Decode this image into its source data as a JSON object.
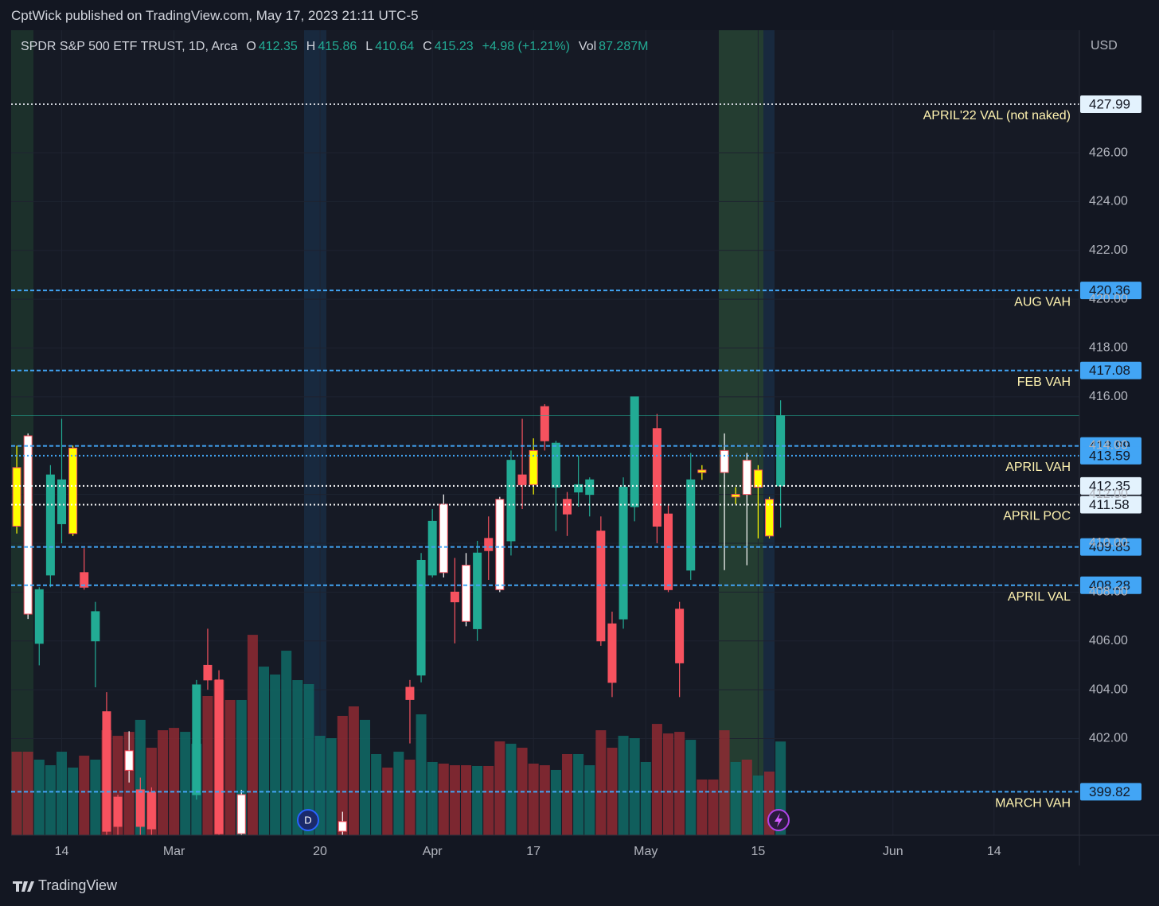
{
  "header": {
    "published": "CptWick published on TradingView.com, May 17, 2023 21:11 UTC-5",
    "symbol": "SPDR S&P 500 ETF TRUST, 1D, Arca",
    "o_label": "O",
    "open": 412.35,
    "h_label": "H",
    "high": 415.86,
    "l_label": "L",
    "low": 410.64,
    "c_label": "C",
    "close": 415.23,
    "change": "+4.98 (+1.21%)",
    "vol_label": "Vol",
    "volume": "87.287M"
  },
  "footer": {
    "brand": "TradingView"
  },
  "chart_data": {
    "type": "candlestick",
    "currency": "USD",
    "xlim": [
      -4.5,
      90.6
    ],
    "ylim": [
      398.04,
      431.02
    ],
    "vlim": [
      0,
      750
    ],
    "xticks": [
      {
        "value": 0,
        "label": "14"
      },
      {
        "value": 10,
        "label": "Mar"
      },
      {
        "value": 23,
        "label": "20"
      },
      {
        "value": 33,
        "label": "Apr"
      },
      {
        "value": 42,
        "label": "17"
      },
      {
        "value": 52,
        "label": "May"
      },
      {
        "value": 62,
        "label": "15"
      },
      {
        "value": 74,
        "label": "Jun"
      },
      {
        "value": 83,
        "label": "14"
      }
    ],
    "yticks": [
      {
        "value": 402,
        "label": "402.00"
      },
      {
        "value": 404,
        "label": "404.00"
      },
      {
        "value": 406,
        "label": "406.00"
      },
      {
        "value": 408,
        "label": "408.00"
      },
      {
        "value": 410,
        "label": "410.00"
      },
      {
        "value": 412,
        "label": "412.00"
      },
      {
        "value": 414,
        "label": "414.00"
      },
      {
        "value": 416,
        "label": "416.00"
      },
      {
        "value": 418,
        "label": "418.00"
      },
      {
        "value": 420,
        "label": "420.00"
      },
      {
        "value": 422,
        "label": "422.00"
      },
      {
        "value": 424,
        "label": "424.00"
      },
      {
        "value": 426,
        "label": "426.00"
      }
    ],
    "grid": true,
    "candles": [
      {
        "x": -4,
        "open": 410.7,
        "high": 414.0,
        "low": 410.4,
        "close": 413.1,
        "color": "#ffff00"
      },
      {
        "x": -3,
        "open": 414.4,
        "high": 414.5,
        "low": 406.9,
        "close": 407.1,
        "color": "#ffffff"
      },
      {
        "x": -2,
        "open": 405.9,
        "high": 408.2,
        "low": 405.0,
        "close": 408.1,
        "color": "#22ab94"
      },
      {
        "x": -1,
        "open": 408.7,
        "high": 413.2,
        "low": 408.2,
        "close": 412.8,
        "color": "#22ab94"
      },
      {
        "x": 0,
        "open": 410.8,
        "high": 415.1,
        "low": 410.0,
        "close": 412.6,
        "color": "#22ab94"
      },
      {
        "x": 1,
        "open": 410.4,
        "high": 414.0,
        "low": 410.3,
        "close": 413.9,
        "color": "#ffff00"
      },
      {
        "x": 2,
        "open": 408.8,
        "high": 409.8,
        "low": 408.1,
        "close": 408.2,
        "color": "#f7525f"
      },
      {
        "x": 3,
        "open": 406.0,
        "high": 407.6,
        "low": 404.1,
        "close": 407.2,
        "color": "#22ab94"
      },
      {
        "x": 4,
        "open": 403.1,
        "high": 403.9,
        "low": 398.0,
        "close": 398.2,
        "color": "#f7525f"
      },
      {
        "x": 5,
        "open": 399.6,
        "high": 399.7,
        "low": 398.0,
        "close": 398.4,
        "color": "#f7525f"
      },
      {
        "x": 6,
        "open": 401.5,
        "high": 402.3,
        "low": 400.2,
        "close": 400.7,
        "color": "#ffffff"
      },
      {
        "x": 7,
        "open": 399.9,
        "high": 400.4,
        "low": 398.0,
        "close": 398.4,
        "color": "#f7525f"
      },
      {
        "x": 8,
        "open": 399.8,
        "high": 400.0,
        "low": 398.0,
        "close": 398.3,
        "color": "#f7525f"
      },
      {
        "x": 12,
        "open": 399.7,
        "high": 404.4,
        "low": 399.5,
        "close": 404.2,
        "color": "#22ab94"
      },
      {
        "x": 13,
        "open": 405.0,
        "high": 406.5,
        "low": 404.0,
        "close": 404.4,
        "color": "#f7525f"
      },
      {
        "x": 14,
        "open": 404.4,
        "high": 404.8,
        "low": 398.0,
        "close": 398.1,
        "color": "#f7525f"
      },
      {
        "x": 16,
        "open": 398.1,
        "high": 399.9,
        "low": 398.0,
        "close": 399.7,
        "color": "#ffffff"
      },
      {
        "x": 25,
        "open": 398.2,
        "high": 399.0,
        "low": 398.0,
        "close": 398.6,
        "color": "#ffffff"
      },
      {
        "x": 31,
        "open": 404.1,
        "high": 404.4,
        "low": 401.8,
        "close": 403.6,
        "color": "#f7525f"
      },
      {
        "x": 32,
        "open": 404.6,
        "high": 409.6,
        "low": 404.3,
        "close": 409.3,
        "color": "#22ab94"
      },
      {
        "x": 33,
        "open": 408.7,
        "high": 411.4,
        "low": 408.6,
        "close": 410.9,
        "color": "#22ab94"
      },
      {
        "x": 34,
        "open": 411.6,
        "high": 412.0,
        "low": 408.6,
        "close": 408.8,
        "color": "#ffffff"
      },
      {
        "x": 35,
        "open": 408.0,
        "high": 409.4,
        "low": 405.9,
        "close": 407.6,
        "color": "#f7525f"
      },
      {
        "x": 36,
        "open": 409.1,
        "high": 409.6,
        "low": 406.6,
        "close": 406.8,
        "color": "#ffffff"
      },
      {
        "x": 37,
        "open": 406.5,
        "high": 410.1,
        "low": 406.0,
        "close": 409.6,
        "color": "#22ab94"
      },
      {
        "x": 38,
        "open": 410.2,
        "high": 411.1,
        "low": 408.5,
        "close": 409.7,
        "color": "#f7525f"
      },
      {
        "x": 39,
        "open": 411.8,
        "high": 411.9,
        "low": 408.0,
        "close": 408.1,
        "color": "#ffffff"
      },
      {
        "x": 40,
        "open": 410.1,
        "high": 413.8,
        "low": 409.5,
        "close": 413.4,
        "color": "#22ab94"
      },
      {
        "x": 41,
        "open": 412.8,
        "high": 415.1,
        "low": 411.4,
        "close": 412.4,
        "color": "#f7525f"
      },
      {
        "x": 42,
        "open": 412.4,
        "high": 414.3,
        "low": 412.0,
        "close": 413.8,
        "color": "#ffff00"
      },
      {
        "x": 43,
        "open": 415.6,
        "high": 415.7,
        "low": 413.8,
        "close": 414.2,
        "color": "#f7525f"
      },
      {
        "x": 44,
        "open": 412.3,
        "high": 414.2,
        "low": 410.5,
        "close": 414.1,
        "color": "#22ab94"
      },
      {
        "x": 45,
        "open": 411.8,
        "high": 412.1,
        "low": 410.3,
        "close": 411.2,
        "color": "#f7525f"
      },
      {
        "x": 46,
        "open": 412.1,
        "high": 413.6,
        "low": 411.5,
        "close": 412.4,
        "color": "#22ab94"
      },
      {
        "x": 47,
        "open": 412.0,
        "high": 412.7,
        "low": 411.1,
        "close": 412.6,
        "color": "#22ab94"
      },
      {
        "x": 48,
        "open": 410.5,
        "high": 411.1,
        "low": 405.8,
        "close": 406.0,
        "color": "#f7525f"
      },
      {
        "x": 49,
        "open": 406.7,
        "high": 407.2,
        "low": 403.7,
        "close": 404.3,
        "color": "#f7525f"
      },
      {
        "x": 50,
        "open": 406.9,
        "high": 412.7,
        "low": 406.5,
        "close": 412.3,
        "color": "#22ab94"
      },
      {
        "x": 51,
        "open": 411.5,
        "high": 416.0,
        "low": 410.9,
        "close": 416.0,
        "color": "#22ab94"
      },
      {
        "x": 53,
        "open": 414.7,
        "high": 415.3,
        "low": 410.0,
        "close": 410.7,
        "color": "#f7525f"
      },
      {
        "x": 54,
        "open": 411.2,
        "high": 411.6,
        "low": 408.0,
        "close": 408.1,
        "color": "#f7525f"
      },
      {
        "x": 55,
        "open": 407.3,
        "high": 407.6,
        "low": 403.7,
        "close": 405.1,
        "color": "#f7525f"
      },
      {
        "x": 56,
        "open": 408.9,
        "high": 413.7,
        "low": 408.5,
        "close": 412.6,
        "color": "#22ab94"
      },
      {
        "x": 57,
        "open": 413.0,
        "high": 413.2,
        "low": 412.6,
        "close": 412.9,
        "color": "#ffff00"
      },
      {
        "x": 59,
        "open": 413.8,
        "high": 414.5,
        "low": 408.9,
        "close": 412.9,
        "color": "#ffffff"
      },
      {
        "x": 60,
        "open": 412.0,
        "high": 412.3,
        "low": 411.6,
        "close": 411.9,
        "color": "#ffff00"
      },
      {
        "x": 61,
        "open": 413.4,
        "high": 413.7,
        "low": 409.1,
        "close": 412.0,
        "color": "#ffffff"
      },
      {
        "x": 62,
        "open": 412.3,
        "high": 413.2,
        "low": 410.2,
        "close": 413.0,
        "color": "#ffff00"
      },
      {
        "x": 63,
        "open": 411.8,
        "high": 411.9,
        "low": 410.2,
        "close": 410.3,
        "color": "#ffff00"
      },
      {
        "x": 64,
        "open": 412.35,
        "high": 415.86,
        "low": 410.64,
        "close": 415.23,
        "color": "#22ab94"
      }
    ],
    "volume": {
      "start": -4,
      "values": [
        77.8,
        77.8,
        70.4,
        65.2,
        77.8,
        63.0,
        74.1,
        70.4,
        97.8,
        92.6,
        96.3,
        107.5,
        81.5,
        97.8,
        100.0,
        96.3,
        85.2,
        129.7,
        144.5,
        126.0,
        126.0,
        186.7,
        157.1,
        149.7,
        171.9,
        144.5,
        140.8,
        92.6,
        90.4,
        111.2,
        120.0,
        107.5,
        75.6,
        63.0,
        77.8,
        70.4,
        112.6,
        68.2,
        66.7,
        65.2,
        65.2,
        64.5,
        64.5,
        87.4,
        85.2,
        81.5,
        66.7,
        65.2,
        60.8,
        75.6,
        75.6,
        65.2,
        97.8,
        81.5,
        92.6,
        90.4,
        68.2,
        103.7,
        94.8,
        96.3,
        88.9,
        51.9,
        51.9,
        97.8,
        68.2,
        70.4,
        55.6,
        59.3,
        87.287
      ],
      "colors": [
        "#8e2a33",
        "#8e2a33",
        "#0f6b66",
        "#0f6b66",
        "#0f6b66",
        "#0f6b66",
        "#8e2a33",
        "#0f6b66",
        "#8e2a33",
        "#8e2a33",
        "#8e2a33",
        "#0f6b66",
        "#8e2a33",
        "#8e2a33",
        "#8e2a33",
        "#0f6b66",
        "#0f6b66",
        "#8e2a33",
        "#8e2a33",
        "#8e2a33",
        "#0f6b66",
        "#8e2a33",
        "#0f6b66",
        "#0f6b66",
        "#0f6b66",
        "#0f6b66",
        "#0f6b66",
        "#0f6b66",
        "#0f6b66",
        "#8e2a33",
        "#8e2a33",
        "#0f6b66",
        "#0f6b66",
        "#8e2a33",
        "#0f6b66",
        "#8e2a33",
        "#0f6b66",
        "#0f6b66",
        "#8e2a33",
        "#8e2a33",
        "#8e2a33",
        "#0f6b66",
        "#8e2a33",
        "#8e2a33",
        "#0f6b66",
        "#8e2a33",
        "#8e2a33",
        "#8e2a33",
        "#0f6b66",
        "#8e2a33",
        "#0f6b66",
        "#0f6b66",
        "#8e2a33",
        "#8e2a33",
        "#0f6b66",
        "#0f6b66",
        "#0f6b66",
        "#8e2a33",
        "#8e2a33",
        "#8e2a33",
        "#0f6b66",
        "#8e2a33",
        "#8e2a33",
        "#8e2a33",
        "#0f6b66",
        "#8e2a33",
        "#0f6b66",
        "#8e2a33",
        "#0f6b66"
      ]
    },
    "levels": [
      {
        "value": 427.99,
        "name": "APRIL'22 VAL (not naked)",
        "color": "#d1d4dc",
        "style": "dotted"
      },
      {
        "value": 420.36,
        "name": "AUG VAH",
        "color": "#42a5f5",
        "style": "dashed"
      },
      {
        "value": 417.08,
        "name": "FEB VAH",
        "color": "#42a5f5",
        "style": "dashed"
      },
      {
        "value": 413.99,
        "color": "#42a5f5",
        "style": "dashed"
      },
      {
        "value": 413.59,
        "name": "APRIL VAH",
        "color": "#42a5f5",
        "style": "dotted"
      },
      {
        "value": 412.35,
        "color": "#ffffff",
        "style": "dotted"
      },
      {
        "value": 411.58,
        "name": "APRIL POC",
        "color": "#ffffff",
        "style": "dotted"
      },
      {
        "value": 409.85,
        "color": "#42a5f5",
        "style": "dashed"
      },
      {
        "value": 408.28,
        "name": "APRIL VAL",
        "color": "#42a5f5",
        "style": "dashed"
      },
      {
        "value": 399.82,
        "name": "MARCH VAH",
        "color": "#42a5f5",
        "style": "dashed"
      }
    ]
  }
}
